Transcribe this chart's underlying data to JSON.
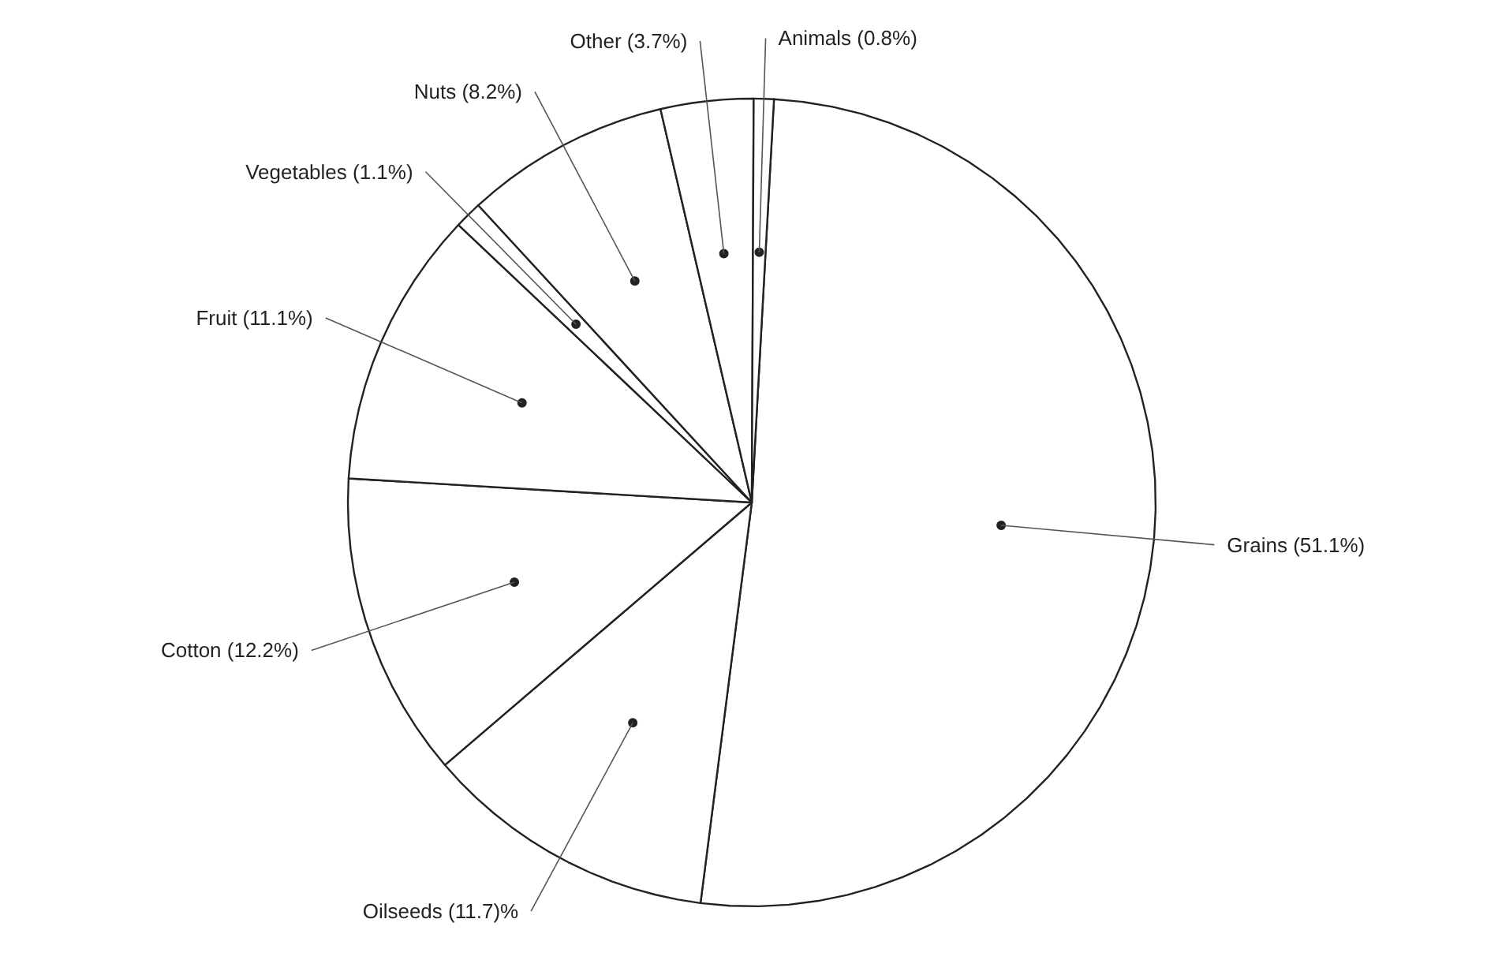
{
  "chart_data": {
    "type": "pie",
    "categories": [
      "Grains (51.1%)",
      "Oilseeds (11.7)%",
      "Cotton (12.2%)",
      "Fruit (11.1%)",
      "Vegetables (1.1%)",
      "Nuts (8.2%)",
      "Other (3.7%)",
      "Animals (0.8%)"
    ],
    "values": [
      51.1,
      11.7,
      12.2,
      11.1,
      1.1,
      8.2,
      3.7,
      0.8
    ],
    "colors": [
      "#ffffff",
      "#ffffff",
      "#ffffff",
      "#ffffff",
      "#ffffff",
      "#ffffff",
      "#ffffff",
      "#ffffff"
    ]
  }
}
